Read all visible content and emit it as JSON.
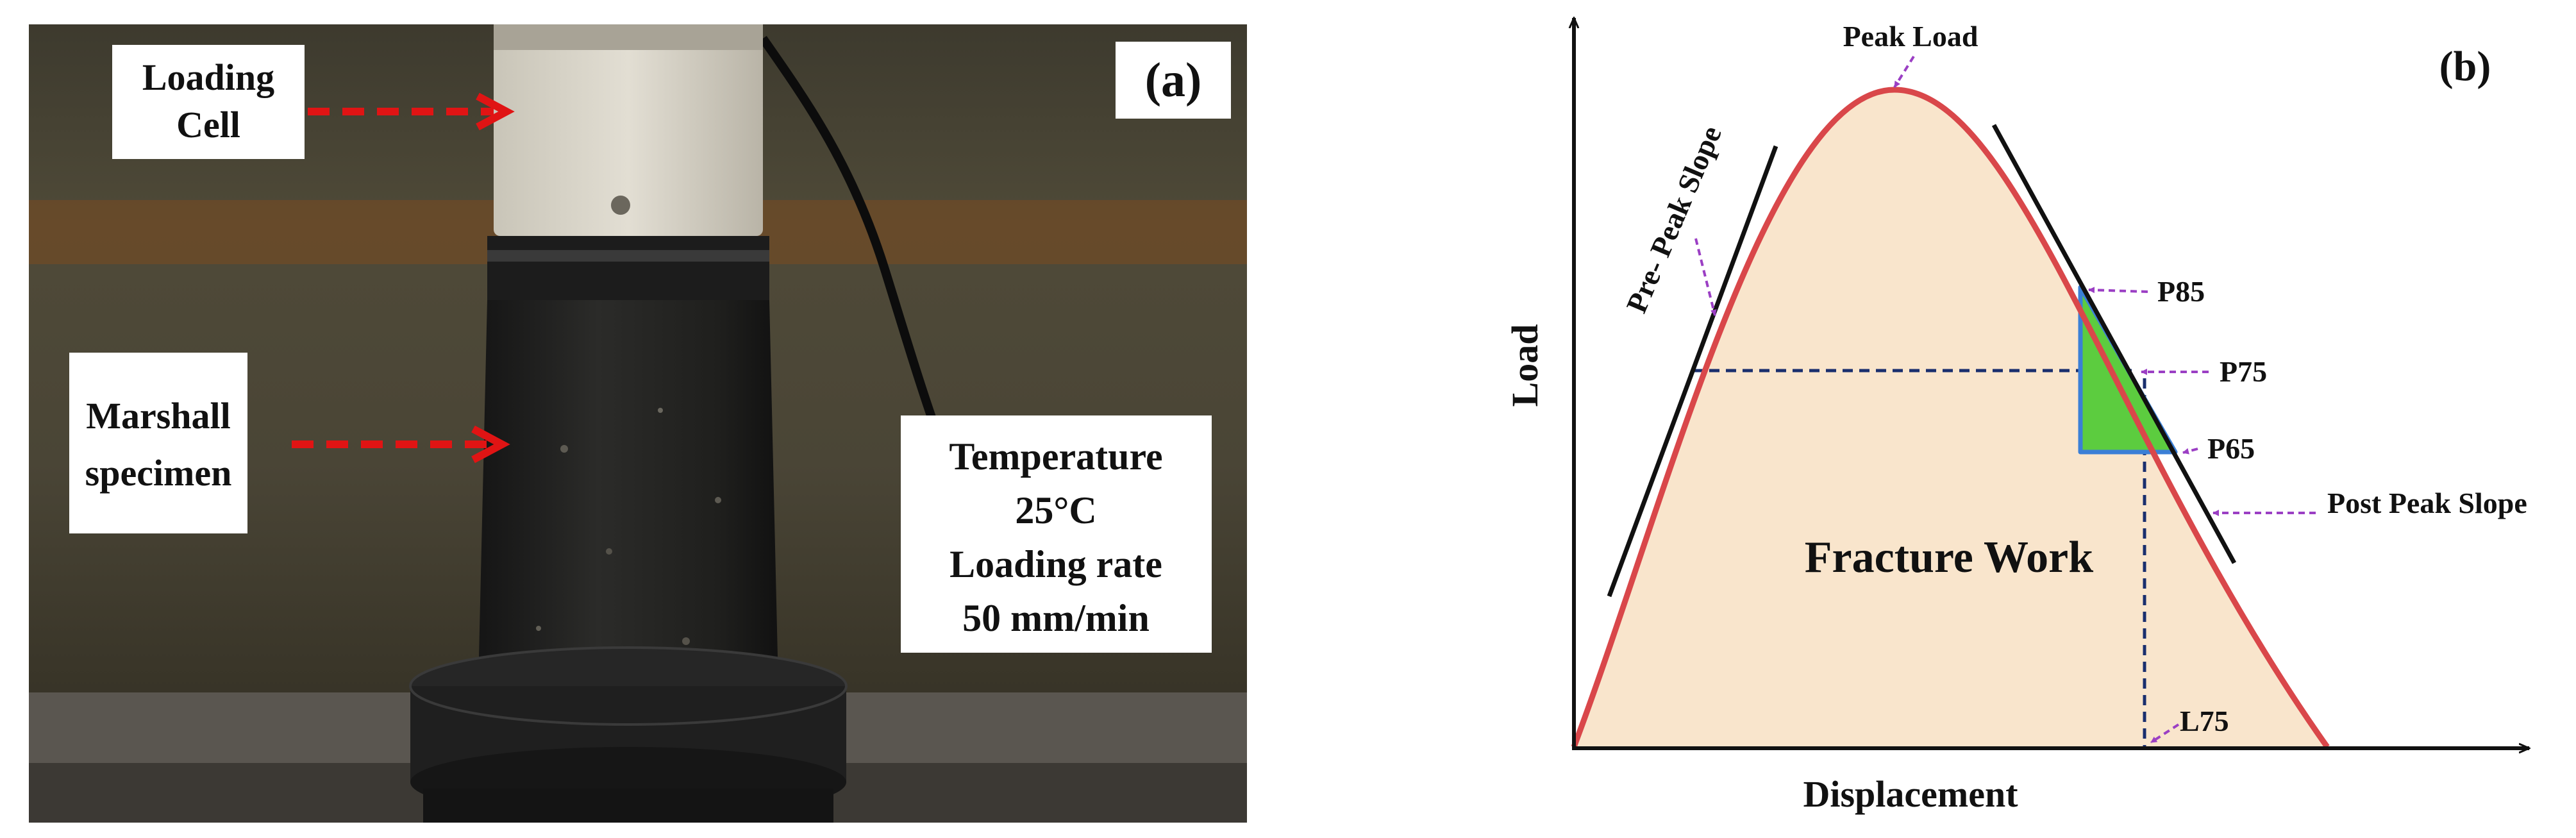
{
  "panel_a": {
    "label": "(a)",
    "loading_cell_label": [
      "Loading",
      "Cell"
    ],
    "specimen_label": [
      "Marshall",
      "specimen"
    ],
    "conditions": [
      "Temperature",
      "25°C",
      "Loading rate",
      "50 mm/min"
    ]
  },
  "panel_b": {
    "label": "(b)",
    "y_axis_label": "Load",
    "x_axis_label": "Displacement",
    "peak_load": "Peak Load",
    "pre_peak_slope": "Pre- Peak Slope",
    "post_peak_slope": "Post Peak Slope",
    "p85": "P85",
    "p75": "P75",
    "p65": "P65",
    "l75": "L75",
    "area_label": "Fracture Work"
  },
  "colors": {
    "curve": "#d9474a",
    "fill": "#f9e5cc",
    "triangle": "#5ccc3f",
    "triangle_edge": "#3b7fd6",
    "dashed_guides": "#1a2f6e",
    "arrows_purple": "#9b3fc4",
    "arrows_red": "#e01414"
  }
}
